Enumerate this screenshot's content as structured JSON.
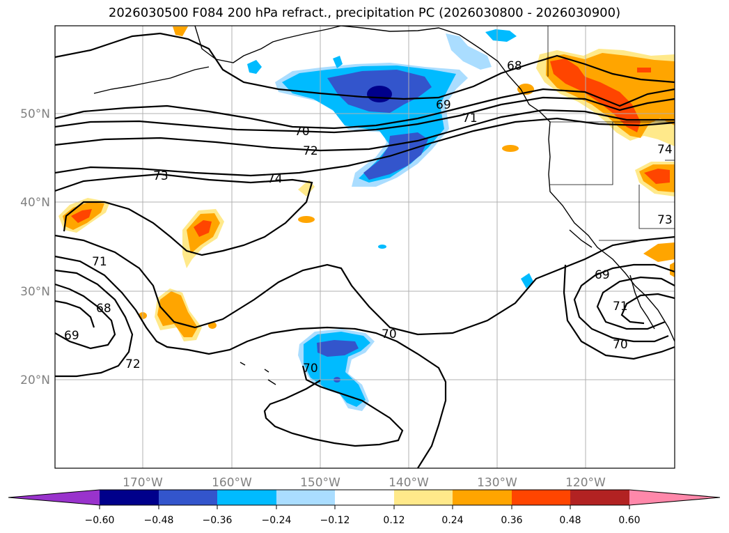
{
  "title": "2026030500 F084 200 hPa refract., precipitation PC (2026030800 - 2026030900)",
  "lat_labels": [
    "50°N",
    "40°N",
    "30°N",
    "20°N"
  ],
  "lon_labels": [
    "170°W",
    "160°W",
    "150°W",
    "140°W",
    "130°W",
    "120°W"
  ],
  "contour_labels": [
    "68",
    "69",
    "70",
    "71",
    "72",
    "73",
    "74",
    "71",
    "68",
    "69",
    "70",
    "72",
    "70",
    "71",
    "69",
    "70",
    "74",
    "73"
  ],
  "colorbar": {
    "ticks": [
      "−0.60",
      "−0.48",
      "−0.36",
      "−0.24",
      "−0.12",
      "0.12",
      "0.24",
      "0.36",
      "0.48",
      "0.60"
    ],
    "colors": [
      "#9933cc",
      "#00008b",
      "#3355cc",
      "#00bbff",
      "#aaddff",
      "#ffffff",
      "#ffe98a",
      "#ffa500",
      "#ff4500",
      "#b22222",
      "#ff88aa"
    ]
  },
  "palette": {
    "neg_light": "#aaddff",
    "neg_mid": "#00bbff",
    "neg_dark": "#3355cc",
    "neg_darkest": "#00008b",
    "pos_light": "#ffe98a",
    "pos_mid": "#ffa500",
    "pos_dark": "#ff4500"
  }
}
